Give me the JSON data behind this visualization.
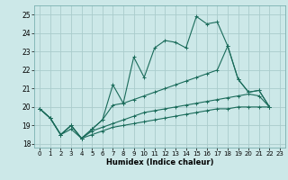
{
  "bg_color": "#cce8e8",
  "grid_color": "#aacccc",
  "line_color": "#1a6b5a",
  "xlabel": "Humidex (Indice chaleur)",
  "xlim": [
    -0.5,
    23.5
  ],
  "ylim": [
    17.8,
    25.5
  ],
  "yticks": [
    18,
    19,
    20,
    21,
    22,
    23,
    24,
    25
  ],
  "xticks": [
    0,
    1,
    2,
    3,
    4,
    5,
    6,
    7,
    8,
    9,
    10,
    11,
    12,
    13,
    14,
    15,
    16,
    17,
    18,
    19,
    20,
    21,
    22,
    23
  ],
  "series": [
    {
      "x": [
        0,
        1,
        2,
        3,
        4,
        5,
        6,
        7,
        8,
        9,
        10,
        11,
        12,
        13,
        14,
        15,
        16,
        17,
        18,
        19,
        20,
        21,
        22
      ],
      "y": [
        19.9,
        19.4,
        18.5,
        19.0,
        18.3,
        18.8,
        19.3,
        21.2,
        20.2,
        22.7,
        21.6,
        23.2,
        23.6,
        23.5,
        23.2,
        24.9,
        24.5,
        24.6,
        23.3,
        21.5,
        20.8,
        20.9,
        20.0
      ]
    },
    {
      "x": [
        0,
        1,
        2,
        3,
        4,
        5,
        6,
        7,
        8,
        9,
        10,
        11,
        12,
        13,
        14,
        15,
        16,
        17,
        18,
        19,
        20,
        21,
        22
      ],
      "y": [
        19.9,
        19.4,
        18.5,
        19.0,
        18.3,
        18.8,
        19.3,
        20.1,
        20.2,
        20.4,
        20.6,
        20.8,
        21.0,
        21.2,
        21.4,
        21.6,
        21.8,
        22.0,
        23.3,
        21.5,
        20.8,
        20.9,
        20.0
      ]
    },
    {
      "x": [
        0,
        1,
        2,
        3,
        4,
        5,
        6,
        7,
        8,
        9,
        10,
        11,
        12,
        13,
        14,
        15,
        16,
        17,
        18,
        19,
        20,
        21,
        22
      ],
      "y": [
        19.9,
        19.4,
        18.5,
        19.0,
        18.3,
        18.7,
        18.9,
        19.1,
        19.3,
        19.5,
        19.7,
        19.8,
        19.9,
        20.0,
        20.1,
        20.2,
        20.3,
        20.4,
        20.5,
        20.6,
        20.7,
        20.6,
        20.0
      ]
    },
    {
      "x": [
        0,
        1,
        2,
        3,
        4,
        5,
        6,
        7,
        8,
        9,
        10,
        11,
        12,
        13,
        14,
        15,
        16,
        17,
        18,
        19,
        20,
        21,
        22
      ],
      "y": [
        19.9,
        19.4,
        18.5,
        18.8,
        18.3,
        18.5,
        18.7,
        18.9,
        19.0,
        19.1,
        19.2,
        19.3,
        19.4,
        19.5,
        19.6,
        19.7,
        19.8,
        19.9,
        19.9,
        20.0,
        20.0,
        20.0,
        20.0
      ]
    }
  ]
}
